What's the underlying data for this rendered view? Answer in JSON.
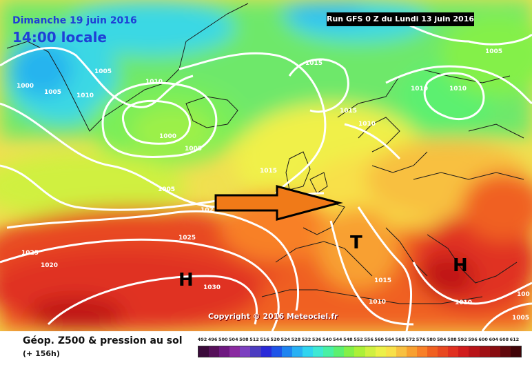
{
  "header": {
    "date": "Dimanche 19 juin 2016",
    "time": "14:00 locale",
    "run": "Run GFS 0 Z du Lundi 13 juin 2016"
  },
  "map": {
    "isobar_labels": [
      "1005",
      "1010",
      "1005",
      "1000",
      "1010",
      "1005",
      "1015",
      "1005",
      "1010",
      "1010",
      "1015",
      "1010",
      "1000",
      "1005",
      "1015",
      "1005",
      "102",
      "1025",
      "1025",
      "1020",
      "1030",
      "1015",
      "1010",
      "1010",
      "100",
      "1005"
    ],
    "pressure_centers": [
      {
        "symbol": "H"
      },
      {
        "symbol": "T"
      },
      {
        "symbol": "H"
      }
    ],
    "copyright": "Copyright © 2016 Meteociel.fr",
    "colors": {
      "isobar": "#ffffff",
      "arrow_fill": "#f07a18",
      "arrow_stroke": "#000000",
      "text_accent": "#1f3fd6"
    }
  },
  "legend": {
    "title": "Géop. Z500 & pression au sol",
    "subtitle": "(+ 156h)",
    "scale_values": [
      "492",
      "496",
      "500",
      "504",
      "508",
      "512",
      "516",
      "520",
      "524",
      "528",
      "532",
      "536",
      "540",
      "544",
      "548",
      "552",
      "556",
      "560",
      "564",
      "568",
      "572",
      "576",
      "580",
      "584",
      "588",
      "592",
      "596",
      "600",
      "604",
      "608",
      "612"
    ],
    "scale_colors": [
      "#3a0a3a",
      "#56105a",
      "#6e1880",
      "#8a2aa0",
      "#7c40c0",
      "#4c3cc0",
      "#2a2ad8",
      "#1e54e8",
      "#1e84f0",
      "#28b0f4",
      "#30d4f0",
      "#3ee8d4",
      "#48f0a4",
      "#5cf070",
      "#84f048",
      "#acf038",
      "#d0f040",
      "#ecf048",
      "#f8e048",
      "#f8c040",
      "#f8a030",
      "#f88028",
      "#f06020",
      "#e84820",
      "#e03020",
      "#d01c1c",
      "#b81418",
      "#a01014",
      "#880c10",
      "#60080c",
      "#400408"
    ]
  }
}
